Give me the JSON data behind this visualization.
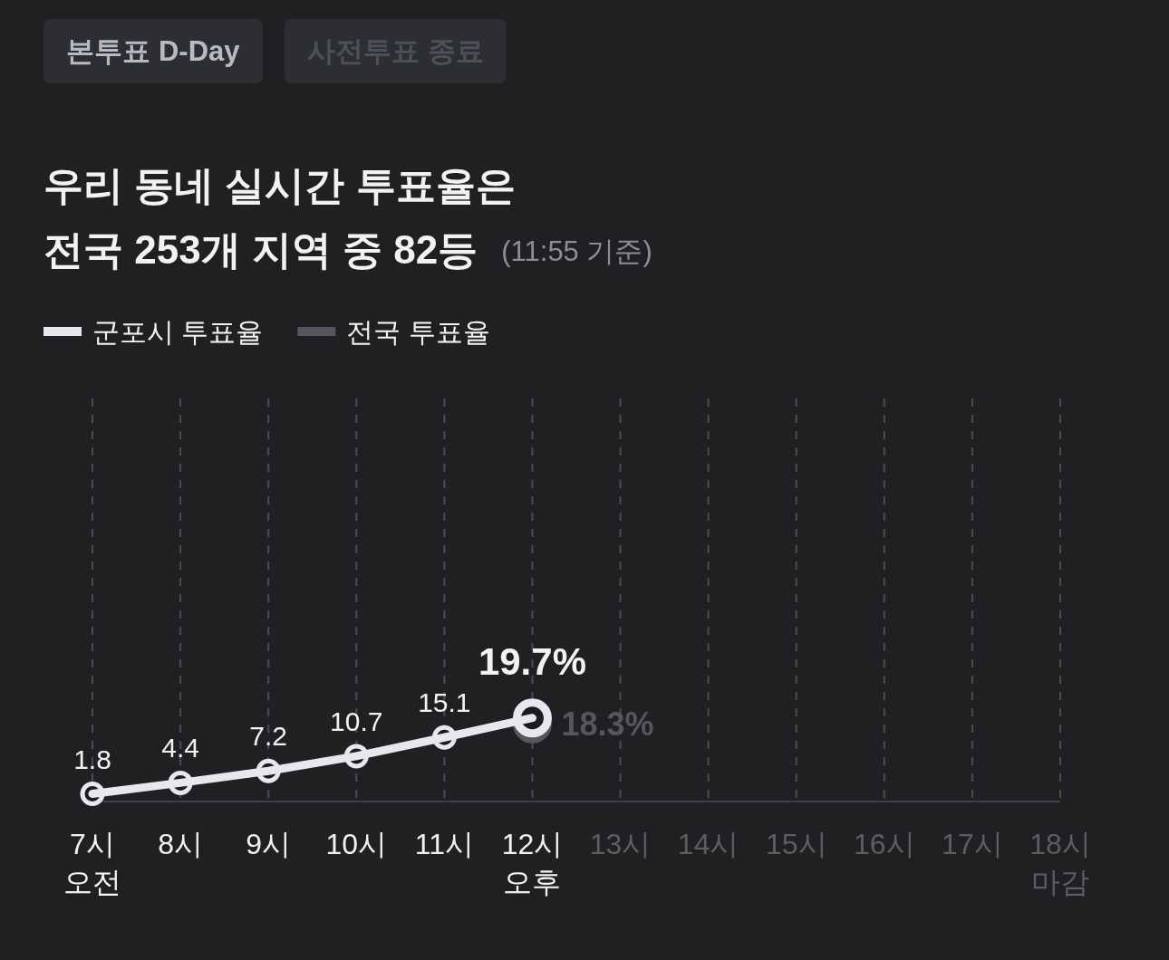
{
  "chart_data": {
    "type": "line",
    "title": "우리 동네 실시간 투표율은\n전국 253개 지역 중 82등",
    "subtitle": "(11:55 기준)",
    "annotations": [
      "본투표 D-Day",
      "사전투표 종료"
    ],
    "categories": [
      "7시\n오전",
      "8시",
      "9시",
      "10시",
      "11시",
      "12시\n오후",
      "13시",
      "14시",
      "15시",
      "16시",
      "17시",
      "18시\n마감"
    ],
    "series": [
      {
        "name": "군포시 투표율",
        "color": "#e8e8ec",
        "values": [
          1.8,
          4.4,
          7.2,
          10.7,
          15.1,
          19.7,
          null,
          null,
          null,
          null,
          null,
          null
        ],
        "value_labels": [
          "1.8",
          "4.4",
          "7.2",
          "10.7",
          "15.1",
          "19.7%",
          null,
          null,
          null,
          null,
          null,
          null
        ]
      },
      {
        "name": "전국 투표율",
        "color": "#55575e",
        "values": [
          null,
          null,
          null,
          null,
          null,
          18.3,
          null,
          null,
          null,
          null,
          null,
          null
        ],
        "value_labels": [
          null,
          null,
          null,
          null,
          null,
          "18.3%",
          null,
          null,
          null,
          null,
          null,
          null
        ]
      }
    ],
    "ylim": [
      0,
      95
    ],
    "grid": "x",
    "legend": "top left",
    "marker": "circle",
    "line_style": "solid"
  }
}
